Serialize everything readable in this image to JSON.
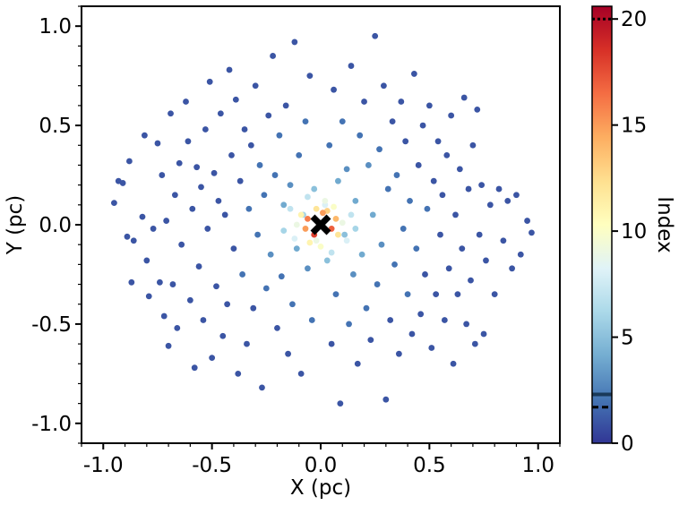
{
  "chart_data": {
    "type": "scatter",
    "title": "",
    "xlabel": "X (pc)",
    "ylabel": "Y (pc)",
    "xlim": [
      -1.1,
      1.1
    ],
    "ylim": [
      -1.1,
      1.1
    ],
    "xticks": [
      {
        "value": -1.0,
        "label": "-1.0"
      },
      {
        "value": -0.5,
        "label": "-0.5"
      },
      {
        "value": 0.0,
        "label": "0.0"
      },
      {
        "value": 0.5,
        "label": "0.5"
      },
      {
        "value": 1.0,
        "label": "1.0"
      }
    ],
    "yticks": [
      {
        "value": -1.0,
        "label": "-1.0"
      },
      {
        "value": -0.5,
        "label": "-0.5"
      },
      {
        "value": 0.0,
        "label": "0.0"
      },
      {
        "value": 0.5,
        "label": "0.5"
      },
      {
        "value": 1.0,
        "label": "1.0"
      }
    ],
    "grid": false,
    "colormap": "RdYlBu_r",
    "colorbar": {
      "label": "Index",
      "range": [
        0,
        20.6
      ],
      "ticks": [
        {
          "value": 0,
          "label": "0"
        },
        {
          "value": 5,
          "label": "5"
        },
        {
          "value": 10,
          "label": "10"
        },
        {
          "value": 15,
          "label": "15"
        },
        {
          "value": 20,
          "label": "20"
        }
      ],
      "markers": [
        {
          "value": 20.0,
          "style": "dotted"
        },
        {
          "value": 2.3,
          "style": "solid"
        },
        {
          "value": 1.7,
          "style": "dashed"
        }
      ]
    },
    "center_marker": {
      "x": 0.0,
      "y": 0.0,
      "symbol": "x",
      "color": "#000000"
    },
    "points": [
      [
        -0.95,
        0.11,
        1
      ],
      [
        -0.93,
        0.22,
        1
      ],
      [
        -0.91,
        0.21,
        1
      ],
      [
        -0.88,
        0.32,
        1
      ],
      [
        -0.89,
        -0.06,
        1
      ],
      [
        -0.86,
        -0.08,
        1
      ],
      [
        -0.87,
        -0.29,
        1
      ],
      [
        -0.82,
        0.04,
        1
      ],
      [
        -0.8,
        -0.18,
        1
      ],
      [
        -0.81,
        0.45,
        1
      ],
      [
        -0.79,
        -0.36,
        1
      ],
      [
        -0.77,
        -0.02,
        1
      ],
      [
        -0.75,
        0.41,
        1
      ],
      [
        -0.74,
        -0.29,
        1
      ],
      [
        -0.73,
        0.25,
        1
      ],
      [
        -0.72,
        -0.46,
        1
      ],
      [
        -0.71,
        0.02,
        1
      ],
      [
        -0.7,
        -0.61,
        1
      ],
      [
        -0.69,
        0.56,
        1
      ],
      [
        -0.68,
        -0.3,
        1
      ],
      [
        -0.67,
        0.15,
        1
      ],
      [
        -0.66,
        -0.52,
        1
      ],
      [
        -0.65,
        0.31,
        1
      ],
      [
        -0.64,
        -0.1,
        1
      ],
      [
        -0.62,
        0.62,
        1
      ],
      [
        -0.61,
        0.42,
        1
      ],
      [
        -0.6,
        -0.38,
        1
      ],
      [
        -0.59,
        0.08,
        1
      ],
      [
        -0.58,
        -0.72,
        1
      ],
      [
        -0.57,
        0.29,
        1
      ],
      [
        -0.56,
        -0.21,
        1
      ],
      [
        -0.55,
        0.19,
        1
      ],
      [
        -0.54,
        -0.48,
        1
      ],
      [
        -0.53,
        0.48,
        1
      ],
      [
        -0.52,
        -0.02,
        1
      ],
      [
        -0.51,
        0.72,
        1
      ],
      [
        -0.5,
        -0.67,
        1
      ],
      [
        -0.49,
        0.26,
        1
      ],
      [
        -0.48,
        -0.31,
        1
      ],
      [
        -0.47,
        0.12,
        1
      ],
      [
        -0.46,
        0.56,
        1
      ],
      [
        -0.45,
        -0.56,
        1
      ],
      [
        -0.44,
        0.05,
        1
      ],
      [
        -0.43,
        -0.4,
        1
      ],
      [
        -0.42,
        0.78,
        1
      ],
      [
        -0.41,
        0.35,
        1
      ],
      [
        -0.4,
        -0.12,
        1
      ],
      [
        -0.39,
        0.63,
        1
      ],
      [
        -0.38,
        -0.75,
        1
      ],
      [
        -0.37,
        0.22,
        1
      ],
      [
        -0.36,
        -0.25,
        2
      ],
      [
        -0.35,
        0.48,
        1
      ],
      [
        -0.34,
        -0.6,
        1
      ],
      [
        -0.33,
        0.08,
        2
      ],
      [
        -0.32,
        0.4,
        1
      ],
      [
        -0.31,
        -0.42,
        1
      ],
      [
        -0.3,
        0.7,
        1
      ],
      [
        -0.29,
        -0.05,
        2
      ],
      [
        -0.28,
        0.3,
        2
      ],
      [
        -0.27,
        -0.82,
        1
      ],
      [
        -0.26,
        0.15,
        2
      ],
      [
        -0.25,
        -0.32,
        2
      ],
      [
        -0.24,
        0.55,
        1
      ],
      [
        -0.23,
        -0.15,
        3
      ],
      [
        -0.22,
        0.85,
        1
      ],
      [
        -0.21,
        0.25,
        2
      ],
      [
        -0.2,
        -0.52,
        1
      ],
      [
        -0.19,
        0.45,
        2
      ],
      [
        -0.18,
        -0.26,
        2
      ],
      [
        -0.17,
        0.1,
        4
      ],
      [
        -0.16,
        0.6,
        1
      ],
      [
        -0.15,
        -0.65,
        1
      ],
      [
        -0.14,
        0.2,
        3
      ],
      [
        -0.13,
        -0.4,
        2
      ],
      [
        -0.12,
        0.92,
        1
      ],
      [
        -0.11,
        -0.12,
        4
      ],
      [
        -0.1,
        0.35,
        2
      ],
      [
        -0.09,
        -0.75,
        1
      ],
      [
        -0.08,
        0.05,
        6
      ],
      [
        -0.07,
        0.52,
        2
      ],
      [
        -0.06,
        -0.22,
        3
      ],
      [
        -0.05,
        0.75,
        1
      ],
      [
        -0.04,
        -0.48,
        2
      ],
      [
        -0.03,
        0.18,
        5
      ],
      [
        -0.02,
        -0.08,
        9
      ],
      [
        0.02,
        0.1,
        8
      ],
      [
        0.03,
        -0.18,
        5
      ],
      [
        0.04,
        0.4,
        2
      ],
      [
        0.05,
        -0.6,
        1
      ],
      [
        0.06,
        0.68,
        1
      ],
      [
        0.07,
        -0.35,
        2
      ],
      [
        0.08,
        0.22,
        4
      ],
      [
        0.09,
        -0.9,
        1
      ],
      [
        0.1,
        0.52,
        2
      ],
      [
        0.11,
        -0.05,
        5
      ],
      [
        0.12,
        0.28,
        3
      ],
      [
        0.13,
        -0.5,
        2
      ],
      [
        0.14,
        0.8,
        1
      ],
      [
        0.15,
        -0.25,
        3
      ],
      [
        0.16,
        0.12,
        4
      ],
      [
        0.17,
        -0.7,
        1
      ],
      [
        0.18,
        0.45,
        2
      ],
      [
        0.19,
        -0.15,
        4
      ],
      [
        0.2,
        0.62,
        1
      ],
      [
        0.21,
        -0.42,
        2
      ],
      [
        0.22,
        0.3,
        3
      ],
      [
        0.23,
        -0.58,
        1
      ],
      [
        0.24,
        0.05,
        4
      ],
      [
        0.25,
        0.95,
        1
      ],
      [
        0.26,
        -0.3,
        2
      ],
      [
        0.27,
        0.38,
        2
      ],
      [
        0.28,
        -0.1,
        3
      ],
      [
        0.29,
        0.7,
        1
      ],
      [
        0.3,
        -0.88,
        1
      ],
      [
        0.31,
        0.18,
        2
      ],
      [
        0.32,
        -0.48,
        1
      ],
      [
        0.33,
        0.52,
        1
      ],
      [
        0.34,
        -0.2,
        2
      ],
      [
        0.35,
        0.25,
        2
      ],
      [
        0.36,
        -0.65,
        1
      ],
      [
        0.37,
        0.62,
        1
      ],
      [
        0.38,
        -0.02,
        2
      ],
      [
        0.39,
        0.42,
        1
      ],
      [
        0.4,
        -0.35,
        2
      ],
      [
        0.41,
        0.12,
        2
      ],
      [
        0.42,
        -0.55,
        1
      ],
      [
        0.43,
        0.76,
        1
      ],
      [
        0.44,
        -0.12,
        2
      ],
      [
        0.45,
        0.3,
        1
      ],
      [
        0.46,
        -0.45,
        1
      ],
      [
        0.47,
        0.5,
        1
      ],
      [
        0.48,
        -0.25,
        1
      ],
      [
        0.49,
        0.08,
        2
      ],
      [
        0.5,
        0.6,
        1
      ],
      [
        0.51,
        -0.62,
        1
      ],
      [
        0.52,
        0.22,
        1
      ],
      [
        0.53,
        -0.35,
        1
      ],
      [
        0.54,
        0.42,
        1
      ],
      [
        0.55,
        -0.05,
        1
      ],
      [
        0.56,
        0.15,
        1
      ],
      [
        0.57,
        -0.48,
        1
      ],
      [
        0.58,
        0.35,
        1
      ],
      [
        0.59,
        -0.22,
        1
      ],
      [
        0.6,
        0.55,
        1
      ],
      [
        0.61,
        -0.7,
        1
      ],
      [
        0.62,
        0.05,
        1
      ],
      [
        0.63,
        -0.35,
        1
      ],
      [
        0.64,
        0.28,
        1
      ],
      [
        0.65,
        -0.12,
        1
      ],
      [
        0.66,
        0.64,
        1
      ],
      [
        0.67,
        -0.5,
        1
      ],
      [
        0.68,
        0.18,
        1
      ],
      [
        0.69,
        -0.28,
        1
      ],
      [
        0.7,
        0.4,
        1
      ],
      [
        0.71,
        -0.6,
        1
      ],
      [
        0.72,
        0.58,
        1
      ],
      [
        0.73,
        -0.05,
        1
      ],
      [
        0.74,
        0.2,
        1
      ],
      [
        0.75,
        -0.55,
        1
      ],
      [
        0.76,
        -0.18,
        1
      ],
      [
        0.78,
        0.1,
        1
      ],
      [
        0.8,
        -0.35,
        1
      ],
      [
        0.82,
        0.18,
        1
      ],
      [
        0.84,
        -0.08,
        1
      ],
      [
        0.86,
        0.12,
        1
      ],
      [
        0.88,
        -0.22,
        1
      ],
      [
        0.9,
        0.15,
        1
      ],
      [
        0.92,
        -0.15,
        1
      ],
      [
        0.95,
        0.02,
        1
      ],
      [
        0.97,
        -0.04,
        1
      ],
      [
        -0.06,
        0.03,
        16
      ],
      [
        0.05,
        -0.02,
        17
      ],
      [
        0.01,
        0.06,
        15
      ],
      [
        -0.03,
        -0.05,
        18
      ],
      [
        0.07,
        0.03,
        14
      ],
      [
        -0.07,
        -0.02,
        15
      ],
      [
        0.03,
        0.07,
        13
      ],
      [
        -0.02,
        0.08,
        12
      ],
      [
        0.08,
        -0.05,
        12
      ],
      [
        -0.09,
        0.05,
        11
      ],
      [
        0.06,
        0.09,
        10
      ],
      [
        -0.05,
        -0.09,
        11
      ],
      [
        0.1,
        0.01,
        9
      ],
      [
        -0.11,
        0.0,
        9
      ],
      [
        0.0,
        -0.11,
        10
      ],
      [
        0.02,
        0.12,
        9
      ],
      [
        -0.12,
        -0.07,
        8
      ],
      [
        0.12,
        -0.08,
        8
      ],
      [
        0.14,
        0.05,
        7
      ],
      [
        -0.14,
        0.08,
        7
      ],
      [
        0.05,
        -0.14,
        7
      ],
      [
        -0.06,
        0.14,
        7
      ],
      [
        0.16,
        -0.02,
        6
      ],
      [
        -0.17,
        -0.03,
        6
      ]
    ]
  }
}
